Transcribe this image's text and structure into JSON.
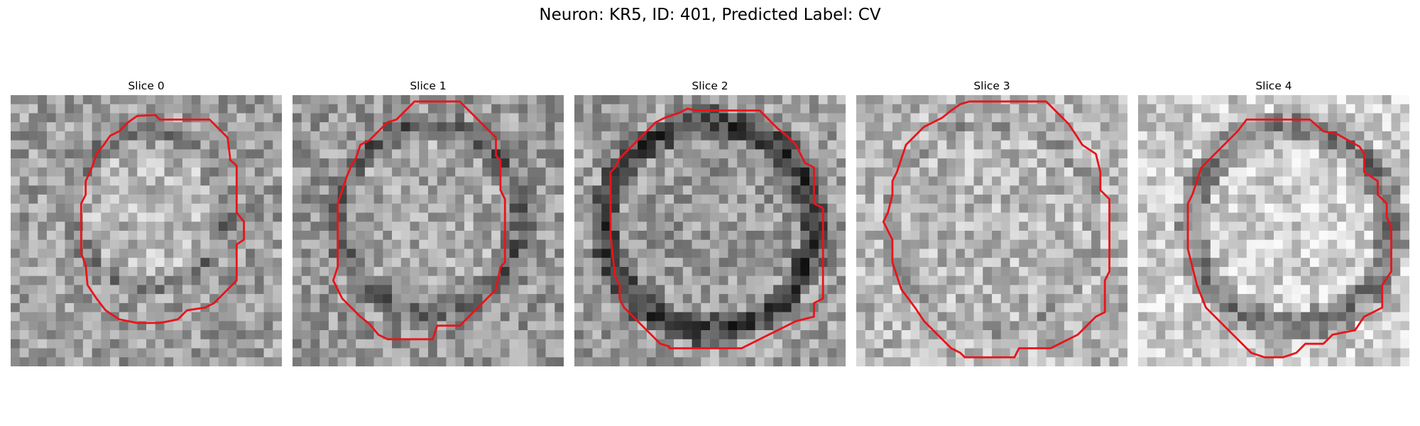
{
  "title": "Neuron: KR5, ID: 401, Predicted Label: CV",
  "panels": [
    {
      "label": "Slice 0",
      "contour": "red polygon outline"
    },
    {
      "label": "Slice 1",
      "contour": "red polygon outline"
    },
    {
      "label": "Slice 2",
      "contour": "red polygon outline"
    },
    {
      "label": "Slice 3",
      "contour": "red polygon outline"
    },
    {
      "label": "Slice 4",
      "contour": "red polygon outline"
    }
  ],
  "contour_color": "#e8141a",
  "colormap": "grayscale"
}
